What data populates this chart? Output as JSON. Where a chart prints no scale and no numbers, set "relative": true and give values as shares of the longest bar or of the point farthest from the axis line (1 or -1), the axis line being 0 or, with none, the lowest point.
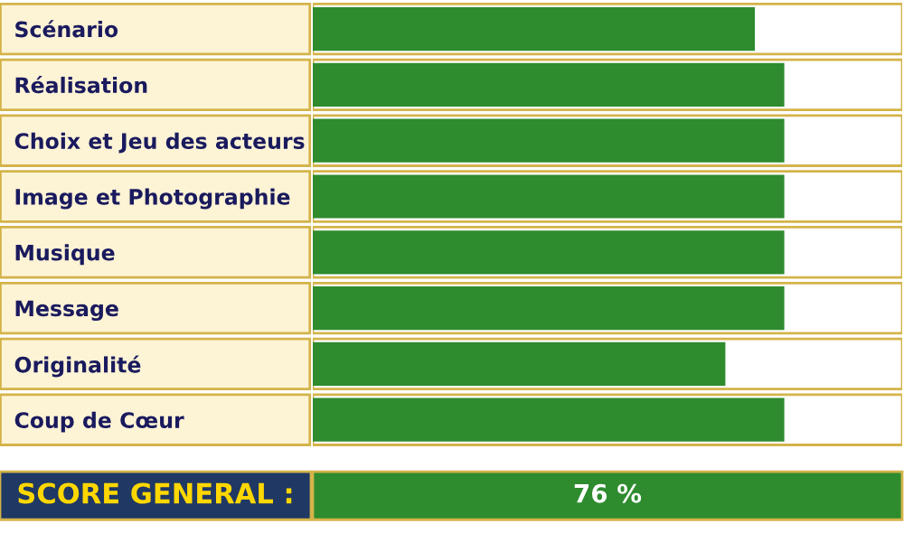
{
  "chart_data": {
    "type": "bar",
    "orientation": "horizontal",
    "relative": true,
    "categories": [
      "Scénario",
      "Réalisation",
      "Choix et Jeu des acteurs",
      "Image et Photographie",
      "Musique",
      "Message",
      "Originalité",
      "Coup de Cœur"
    ],
    "values": [
      0.9375,
      1,
      1,
      1,
      1,
      1,
      0.875,
      1
    ],
    "color": "#2e8b2e",
    "annotations": [
      "SCORE GENERAL :",
      "76 %"
    ]
  }
}
